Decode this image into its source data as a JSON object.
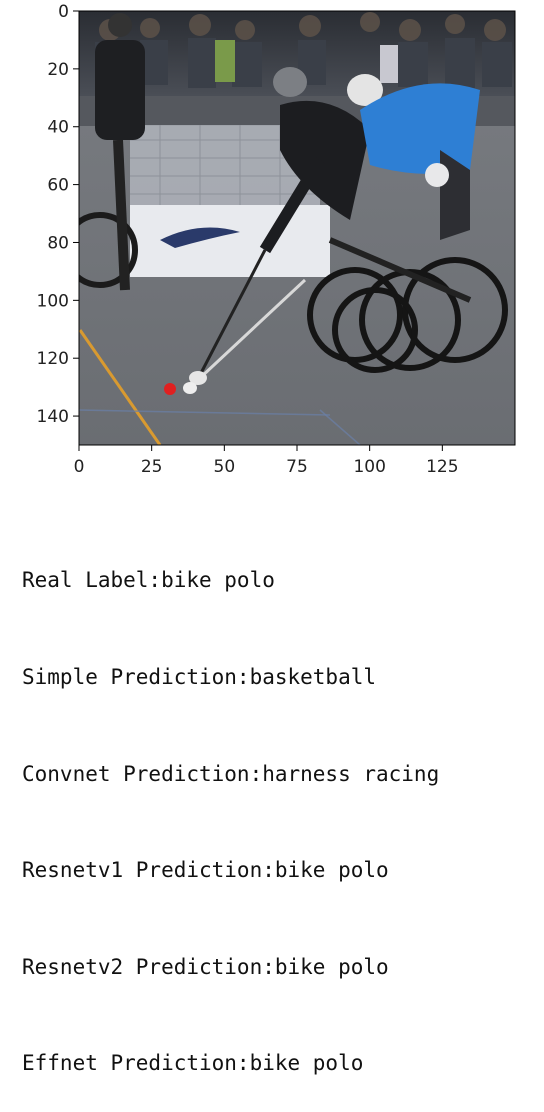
{
  "image": {
    "description": "bike polo match photo"
  },
  "axes": {
    "x_ticks": [
      "0",
      "25",
      "50",
      "75",
      "100",
      "125"
    ],
    "y_ticks": [
      "0",
      "20",
      "40",
      "60",
      "80",
      "100",
      "120",
      "140"
    ],
    "xlim": [
      0,
      150
    ],
    "ylim": [
      150,
      0
    ]
  },
  "output_lines": [
    "Real Label:bike polo",
    "Simple Prediction:basketball",
    "Convnet Prediction:harness racing",
    "Resnetv1 Prediction:bike polo",
    "Resnetv2 Prediction:bike polo",
    "Effnet Prediction:bike polo"
  ]
}
